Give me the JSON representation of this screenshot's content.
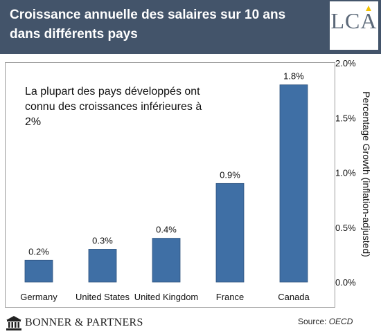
{
  "header": {
    "title": "Croissance annuelle des salaires sur 10 ans dans différents pays",
    "logo": "LCA"
  },
  "annotation": "La plupart des pays développés ont connu des croissances inférieures à 2%",
  "footer": {
    "brand": "BONNER & PARTNERS",
    "source_label": "Source:",
    "source_name": "OECD"
  },
  "colors": {
    "header_bg": "#43546a",
    "bar": "#3f6fa5"
  },
  "chart_data": {
    "type": "bar",
    "categories": [
      "Germany",
      "United States",
      "United Kingdom",
      "France",
      "Canada"
    ],
    "values": [
      0.2,
      0.3,
      0.4,
      0.9,
      1.8
    ],
    "data_labels": [
      "0.2%",
      "0.3%",
      "0.4%",
      "0.9%",
      "1.8%"
    ],
    "ylabel": "Percentage Growth (inflation-adjusted)",
    "yaxis_position": "right",
    "ylim": [
      0,
      2.0
    ],
    "yticks": [
      0,
      0.5,
      1.0,
      1.5,
      2.0
    ],
    "ytick_labels": [
      "0.0%",
      "0.5%",
      "1.0%",
      "1.5%",
      "2.0%"
    ],
    "grid": false
  }
}
